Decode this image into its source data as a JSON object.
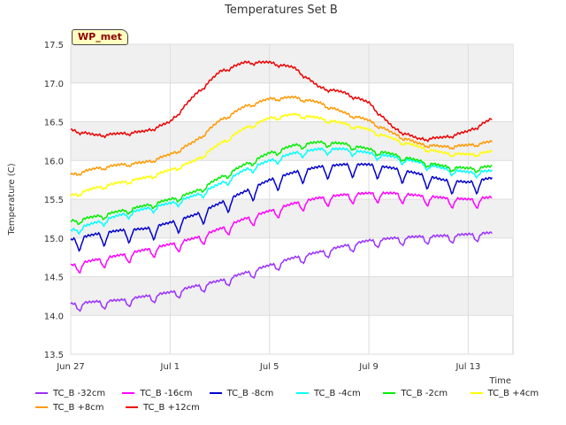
{
  "chart_data": {
    "type": "line",
    "title": "Temperatures Set B",
    "ylabel": "Temperature (C)",
    "xlabel": "Time",
    "ylim": [
      13.5,
      17.5
    ],
    "yticks": [
      "13.5",
      "14.0",
      "14.5",
      "15.0",
      "15.5",
      "16.0",
      "16.5",
      "17.0",
      "17.5"
    ],
    "xticks": [
      "Jun 27",
      "Jul 1",
      "Jul 5",
      "Jul 9",
      "Jul 13"
    ],
    "x_dates": [
      "Jun 27",
      "Jun 28",
      "Jun 29",
      "Jun 30",
      "Jul 1",
      "Jul 2",
      "Jul 3",
      "Jul 4",
      "Jul 5",
      "Jul 6",
      "Jul 7",
      "Jul 8",
      "Jul 9",
      "Jul 10",
      "Jul 11",
      "Jul 12",
      "Jul 13",
      "Jul 14"
    ],
    "grid": true,
    "legend_position": "bottom",
    "annotation": "WP_met",
    "series": [
      {
        "name": "TC_B -32cm",
        "color": "#9b30ff",
        "values": [
          14.15,
          14.18,
          14.2,
          14.25,
          14.3,
          14.38,
          14.45,
          14.55,
          14.65,
          14.75,
          14.82,
          14.9,
          14.97,
          15.0,
          15.02,
          15.03,
          15.05,
          15.07
        ]
      },
      {
        "name": "TC_B -16cm",
        "color": "#ff00ff",
        "values": [
          14.65,
          14.72,
          14.78,
          14.85,
          14.92,
          15.0,
          15.12,
          15.25,
          15.35,
          15.45,
          15.52,
          15.56,
          15.58,
          15.58,
          15.55,
          15.52,
          15.5,
          15.53
        ]
      },
      {
        "name": "TC_B -8cm",
        "color": "#0000cd",
        "values": [
          14.98,
          15.05,
          15.1,
          15.12,
          15.2,
          15.3,
          15.45,
          15.6,
          15.75,
          15.85,
          15.92,
          15.95,
          15.95,
          15.9,
          15.83,
          15.75,
          15.72,
          15.78
        ]
      },
      {
        "name": "TC_B -4cm",
        "color": "#00ffff",
        "values": [
          15.1,
          15.2,
          15.3,
          15.38,
          15.45,
          15.55,
          15.7,
          15.88,
          16.0,
          16.1,
          16.15,
          16.15,
          16.1,
          16.05,
          15.98,
          15.9,
          15.85,
          15.87
        ]
      },
      {
        "name": "TC_B -2cm",
        "color": "#00ee00",
        "values": [
          15.22,
          15.28,
          15.35,
          15.42,
          15.5,
          15.6,
          15.78,
          15.95,
          16.1,
          16.2,
          16.24,
          16.22,
          16.15,
          16.08,
          16.0,
          15.93,
          15.9,
          15.93
        ]
      },
      {
        "name": "TC_B +4cm",
        "color": "#ffff00",
        "values": [
          15.55,
          15.65,
          15.72,
          15.78,
          15.88,
          16.0,
          16.22,
          16.42,
          16.55,
          16.6,
          16.55,
          16.48,
          16.4,
          16.28,
          16.18,
          16.1,
          16.08,
          16.12
        ]
      },
      {
        "name": "TC_B +8cm",
        "color": "#ff9900",
        "values": [
          15.82,
          15.9,
          15.95,
          15.98,
          16.08,
          16.25,
          16.52,
          16.7,
          16.8,
          16.82,
          16.75,
          16.62,
          16.52,
          16.35,
          16.22,
          16.18,
          16.2,
          16.25
        ]
      },
      {
        "name": "TC_B +12cm",
        "color": "#ee0000",
        "values": [
          16.4,
          16.33,
          16.35,
          16.38,
          16.5,
          16.85,
          17.15,
          17.27,
          17.27,
          17.2,
          16.95,
          16.88,
          16.75,
          16.42,
          16.28,
          16.3,
          16.38,
          16.55
        ]
      }
    ]
  }
}
